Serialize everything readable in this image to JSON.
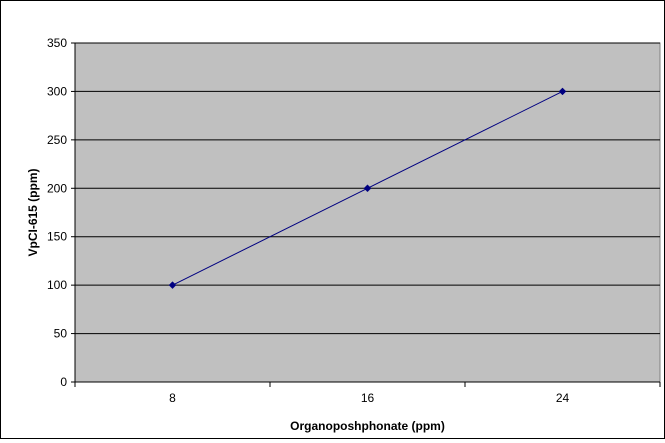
{
  "chart_data": {
    "type": "line",
    "title": "",
    "xlabel": "Organoposhphonate (ppm)",
    "ylabel": "VpCI-615 (ppm)",
    "categories": [
      "8",
      "16",
      "24"
    ],
    "series": [
      {
        "values": [
          100,
          200,
          300
        ]
      }
    ],
    "ylim": [
      0,
      350
    ],
    "yticks": [
      0,
      50,
      100,
      150,
      200,
      250,
      300,
      350
    ],
    "grid": true,
    "legend": "none",
    "colors": {
      "plot_background": "#c0c0c0",
      "line": "#000080",
      "marker": "#000080",
      "gridline": "#000000"
    }
  }
}
